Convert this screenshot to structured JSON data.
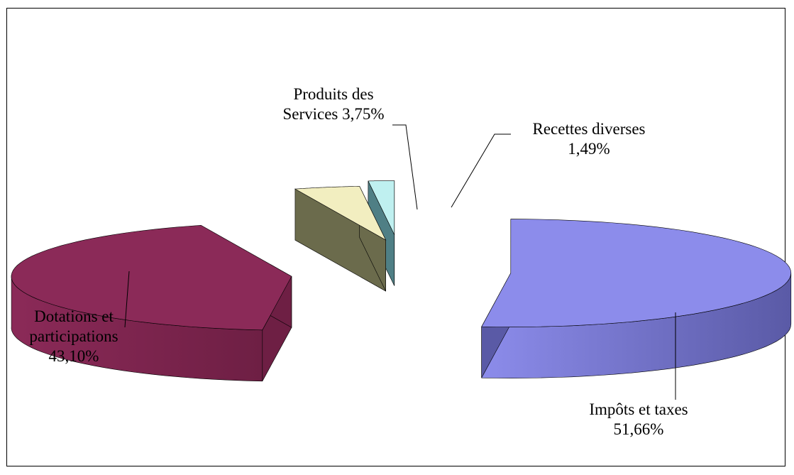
{
  "chart_data": {
    "type": "pie",
    "title": "",
    "categories": [
      "Impôts et taxes",
      "Dotations et participations",
      "Produits des Services",
      "Recettes diverses"
    ],
    "values": [
      51.66,
      43.1,
      3.75,
      1.49
    ],
    "colors": [
      "#8c8ceb",
      "#8b2a58",
      "#f2eec0",
      "#bff0f0"
    ],
    "side_colors": [
      "#5a5aa6",
      "#6e1f44",
      "#6b6b4c",
      "#4f7f85"
    ],
    "labels": [
      {
        "name": "Impôts et taxes",
        "value": "51,66%"
      },
      {
        "name_line1": "Dotations et",
        "name_line2": "participations",
        "value": "43,10%"
      },
      {
        "name_line1": "Produits des",
        "name_line2": "Services 3,75%"
      },
      {
        "name": "Recettes diverses",
        "value": "1,49%"
      }
    ],
    "legend": "none",
    "style": "3d-exploded"
  }
}
